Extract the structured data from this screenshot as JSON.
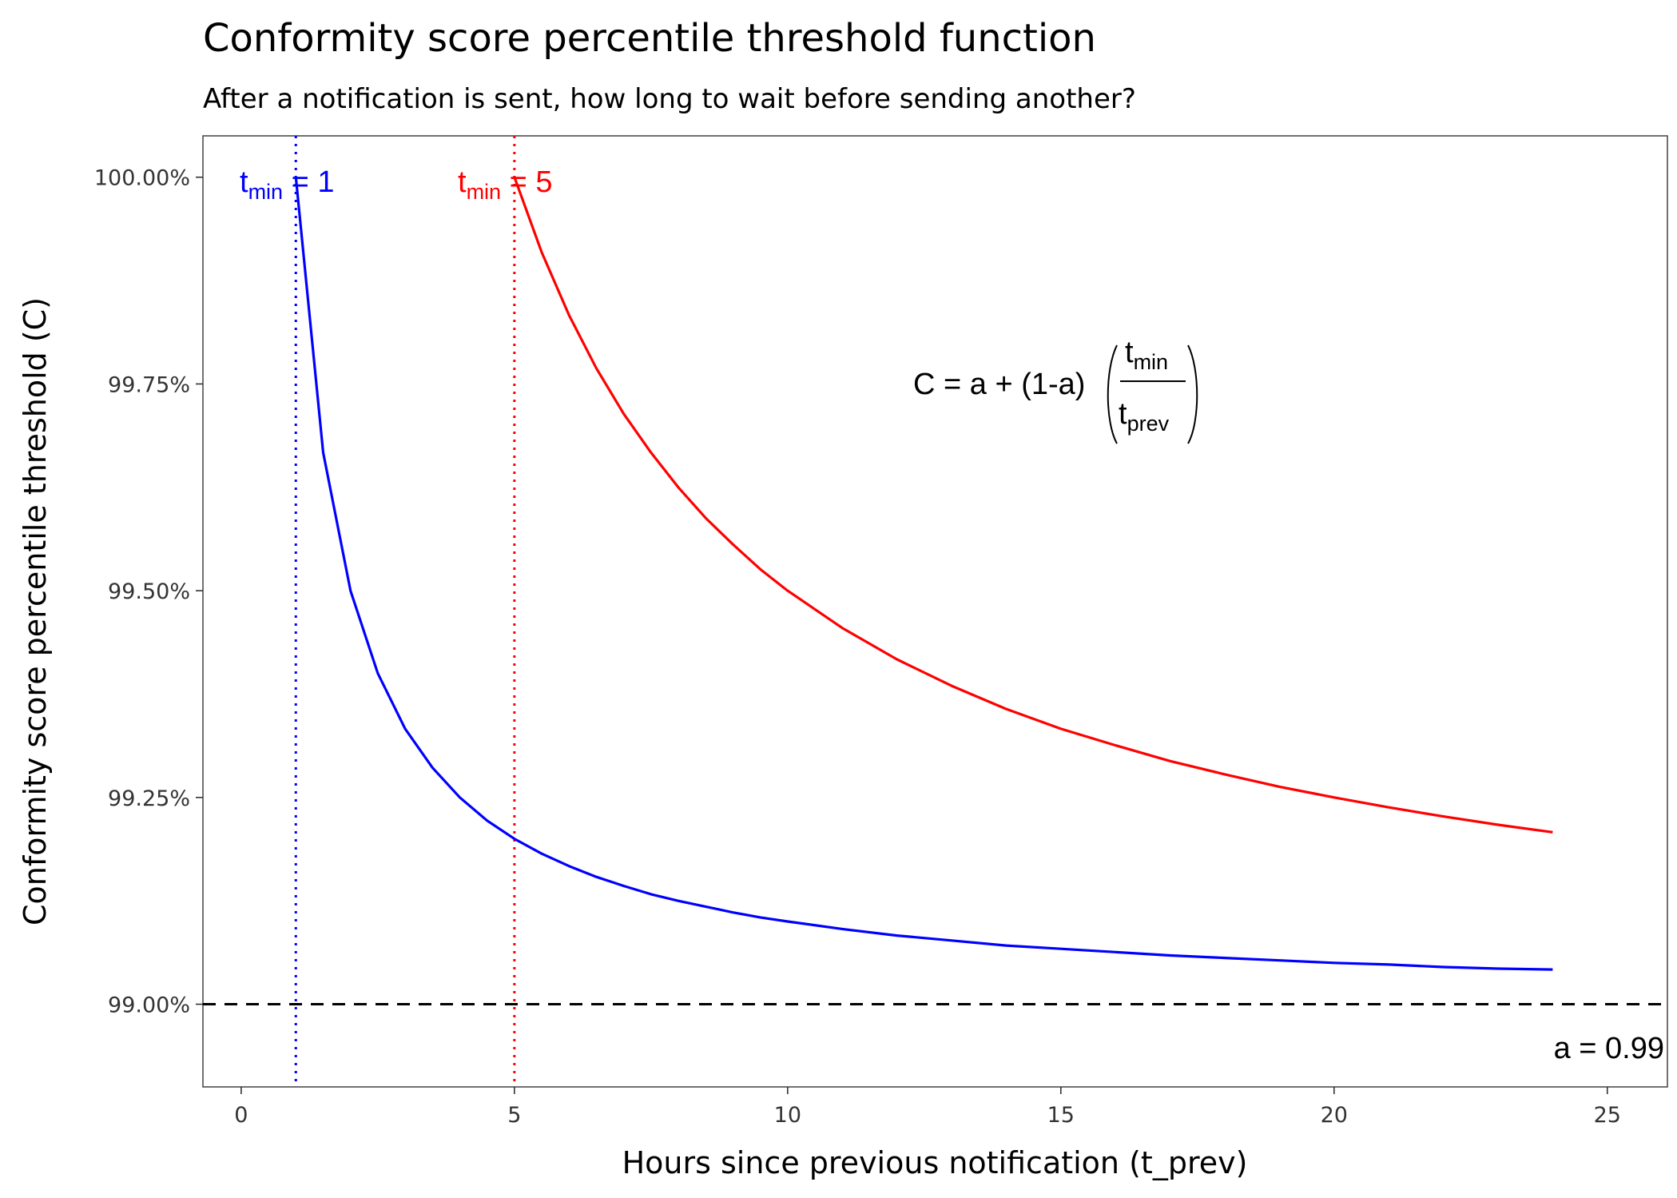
{
  "chart_data": {
    "type": "line",
    "title": "Conformity score percentile threshold function",
    "subtitle": "After a notification is sent, how long to wait before sending another?",
    "xlabel": "Hours since previous notification (t_prev)",
    "ylabel": "Conformity score percentile threshold (C)",
    "xlim": [
      -0.7,
      26.1
    ],
    "ylim": [
      98.9,
      100.05
    ],
    "x_ticks": [
      0,
      5,
      10,
      15,
      20,
      25
    ],
    "x_tick_labels": [
      "0",
      "5",
      "10",
      "15",
      "20",
      "25"
    ],
    "y_ticks": [
      99.0,
      99.25,
      99.5,
      99.75,
      100.0
    ],
    "y_tick_labels": [
      "99.00%",
      "99.25%",
      "99.50%",
      "99.75%",
      "100.00%"
    ],
    "grid": false,
    "a": 0.99,
    "series": [
      {
        "t_min": 1,
        "color": "#0000ff",
        "x": [
          1,
          1.5,
          2,
          2.5,
          3,
          3.5,
          4,
          4.5,
          5,
          5.5,
          6,
          6.5,
          7,
          7.5,
          8,
          8.5,
          9,
          9.5,
          10,
          11,
          12,
          13,
          14,
          15,
          16,
          17,
          18,
          19,
          20,
          21,
          22,
          23,
          24
        ],
        "values": [
          100.0,
          99.667,
          99.5,
          99.4,
          99.333,
          99.286,
          99.25,
          99.222,
          99.2,
          99.182,
          99.167,
          99.154,
          99.143,
          99.133,
          99.125,
          99.118,
          99.111,
          99.105,
          99.1,
          99.091,
          99.083,
          99.077,
          99.071,
          99.067,
          99.063,
          99.059,
          99.056,
          99.053,
          99.05,
          99.048,
          99.045,
          99.043,
          99.042
        ]
      },
      {
        "t_min": 5,
        "color": "#ff0000",
        "x": [
          5,
          5.5,
          6,
          6.5,
          7,
          7.5,
          8,
          8.5,
          9,
          9.5,
          10,
          11,
          12,
          13,
          14,
          15,
          16,
          17,
          18,
          19,
          20,
          21,
          22,
          23,
          24
        ],
        "values": [
          100.0,
          99.909,
          99.833,
          99.769,
          99.714,
          99.667,
          99.625,
          99.588,
          99.556,
          99.526,
          99.5,
          99.455,
          99.417,
          99.385,
          99.357,
          99.333,
          99.313,
          99.294,
          99.278,
          99.263,
          99.25,
          99.238,
          99.227,
          99.217,
          99.208
        ]
      }
    ],
    "reference_lines": [
      {
        "axis": "x",
        "value": 1,
        "color": "#0000ff",
        "style": "dotted"
      },
      {
        "axis": "x",
        "value": 5,
        "color": "#ff0000",
        "style": "dotted"
      },
      {
        "axis": "y",
        "value": 99.0,
        "color": "#000000",
        "style": "dashed"
      }
    ],
    "annotations": {
      "tmin1": {
        "t": "t",
        "sub": "min",
        "rest": " = 1",
        "color": "#0000ff"
      },
      "tmin5": {
        "t": "t",
        "sub": "min",
        "rest": " = 5",
        "color": "#ff0000"
      },
      "a_label": "a = 0.99",
      "formula": {
        "lhs": "C = a + (1-a)",
        "num_t": "t",
        "num_sub": "min",
        "den_t": "t",
        "den_sub": "prev"
      }
    }
  }
}
